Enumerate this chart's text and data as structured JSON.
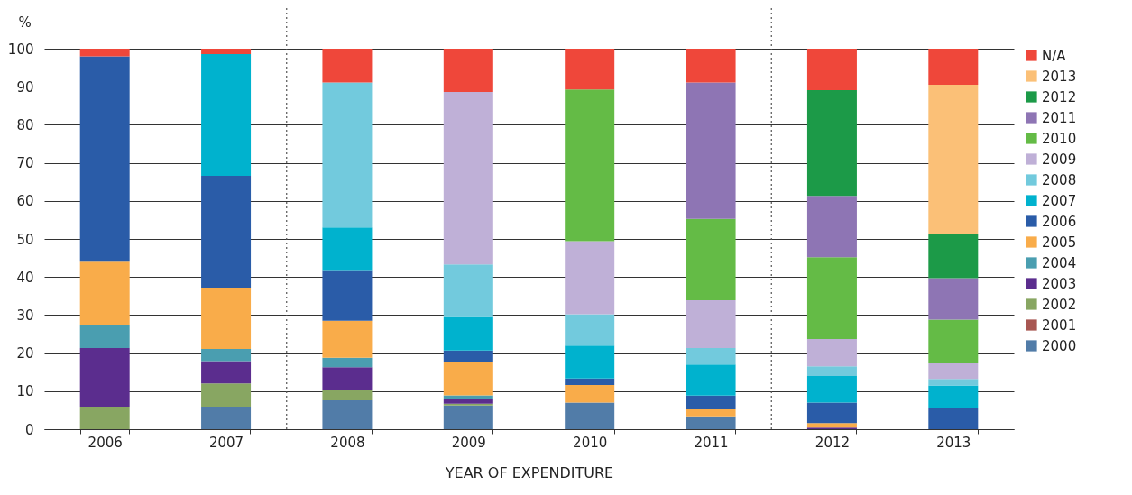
{
  "chart_data": {
    "type": "bar",
    "stacked": true,
    "xlabel": "YEAR OF EXPENDITURE",
    "ylabel": "%",
    "categories": [
      "2006",
      "2007",
      "2008",
      "2009",
      "2010",
      "2011",
      "2012",
      "2013"
    ],
    "series": [
      {
        "name": "2000",
        "color": "#517ca8",
        "values": [
          0,
          5.9,
          7.6,
          6.2,
          7.0,
          3.4,
          0,
          0
        ]
      },
      {
        "name": "2001",
        "color": "#a85752",
        "values": [
          0,
          0,
          0,
          0,
          0,
          0,
          0,
          0
        ]
      },
      {
        "name": "2002",
        "color": "#88a662",
        "values": [
          5.9,
          6.1,
          2.6,
          0.5,
          0,
          0,
          0,
          0
        ]
      },
      {
        "name": "2003",
        "color": "#5b2d8e",
        "values": [
          15.4,
          5.9,
          6.1,
          1.3,
          0,
          0,
          0.4,
          0
        ]
      },
      {
        "name": "2004",
        "color": "#4a9eb0",
        "values": [
          6.0,
          3.2,
          2.5,
          0.9,
          0,
          0,
          0,
          0
        ]
      },
      {
        "name": "2005",
        "color": "#f9ac4a",
        "values": [
          16.7,
          16.1,
          9.7,
          8.8,
          4.6,
          1.8,
          1.2,
          0
        ]
      },
      {
        "name": "2006",
        "color": "#2a5ca8",
        "values": [
          54.0,
          29.4,
          13.1,
          3.0,
          1.7,
          3.6,
          5.4,
          5.5
        ]
      },
      {
        "name": "2007",
        "color": "#00b2ce",
        "values": [
          0,
          32.0,
          11.4,
          8.8,
          8.7,
          8.2,
          7.0,
          6.0
        ]
      },
      {
        "name": "2008",
        "color": "#72cadd",
        "values": [
          0,
          0,
          38.1,
          13.8,
          8.2,
          4.3,
          2.5,
          1.7
        ]
      },
      {
        "name": "2009",
        "color": "#bfb0d7",
        "values": [
          0,
          0,
          0,
          45.3,
          19.2,
          12.6,
          7.2,
          4.1
        ]
      },
      {
        "name": "2010",
        "color": "#64bb46",
        "values": [
          0,
          0,
          0,
          0,
          39.9,
          21.4,
          21.5,
          11.5
        ]
      },
      {
        "name": "2011",
        "color": "#8e75b4",
        "values": [
          0,
          0,
          0,
          0,
          0,
          35.8,
          16.1,
          10.9
        ]
      },
      {
        "name": "2012",
        "color": "#1c9a48",
        "values": [
          0,
          0,
          0,
          0,
          0,
          0,
          27.8,
          11.7
        ]
      },
      {
        "name": "2013",
        "color": "#fbc077",
        "values": [
          0,
          0,
          0,
          0,
          0,
          0,
          0,
          39.1
        ]
      },
      {
        "name": "N/A",
        "color": "#ef473a",
        "values": [
          2.0,
          1.4,
          8.9,
          11.4,
          10.7,
          8.9,
          10.9,
          9.5
        ]
      }
    ],
    "ylim": [
      0,
      100
    ],
    "yticks": [
      0,
      10,
      20,
      30,
      40,
      50,
      60,
      70,
      80,
      90,
      100
    ],
    "grid": "y",
    "legend": "right"
  }
}
